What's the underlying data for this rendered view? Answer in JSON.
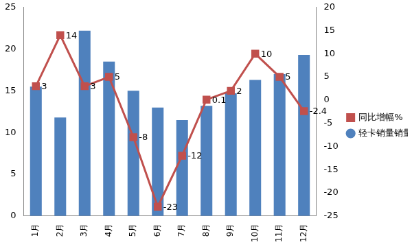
{
  "chart_data": {
    "type": "bar",
    "categories": [
      "1月",
      "2月",
      "3月",
      "4月",
      "5月",
      "6月",
      "7月",
      "8月",
      "9月",
      "10月",
      "11月",
      "12月"
    ],
    "series": [
      {
        "name": "轻卡销量销量（万辆）",
        "type": "bar",
        "color": "#4f81bd",
        "values": [
          15.5,
          11.8,
          22.2,
          18.5,
          15,
          13,
          11.5,
          13.2,
          14.7,
          16.3,
          17,
          19.3
        ]
      },
      {
        "name": "同比增幅%",
        "type": "line",
        "axis": "y2",
        "color": "#c0504d",
        "marker": "square",
        "data_labels": true,
        "values": [
          3,
          14,
          3,
          5,
          -8,
          -23,
          -12,
          0.1,
          2,
          10,
          5,
          -2.4
        ]
      }
    ],
    "ylim": [
      0,
      25
    ],
    "yticks": [
      0,
      5,
      10,
      15,
      20,
      25
    ],
    "y2lim": [
      -25,
      20
    ],
    "y2ticks": [
      -25,
      -20,
      -15,
      -10,
      -5,
      0,
      5,
      10,
      15,
      20
    ],
    "grid": false,
    "legend": "right"
  }
}
